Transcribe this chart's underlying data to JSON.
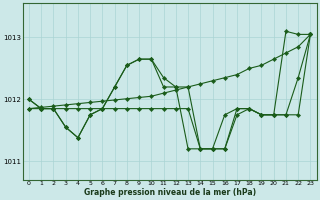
{
  "xlabel": "Graphe pression niveau de la mer (hPa)",
  "background_color": "#cce8e8",
  "grid_color": "#aad4d4",
  "line_color": "#1a5c1a",
  "ylim": [
    1010.7,
    1013.55
  ],
  "yticks": [
    1011,
    1012,
    1013
  ],
  "xlim": [
    -0.5,
    23.5
  ],
  "xticks": [
    0,
    1,
    2,
    3,
    4,
    5,
    6,
    7,
    8,
    9,
    10,
    11,
    12,
    13,
    14,
    15,
    16,
    17,
    18,
    19,
    20,
    21,
    22,
    23
  ],
  "line1_y": [
    1012.0,
    1011.85,
    1011.85,
    1011.55,
    1011.38,
    1011.75,
    1011.85,
    1012.2,
    1012.55,
    1012.65,
    1012.65,
    1012.2,
    1012.2,
    1012.2,
    1011.2,
    1011.2,
    1011.2,
    1011.75,
    1011.85,
    1011.75,
    1011.75,
    1013.1,
    1013.05,
    1013.05
  ],
  "line2_y": [
    1011.85,
    1011.87,
    1011.89,
    1011.91,
    1011.93,
    1011.95,
    1011.97,
    1011.99,
    1012.01,
    1012.03,
    1012.05,
    1012.1,
    1012.15,
    1012.2,
    1012.25,
    1012.3,
    1012.35,
    1012.4,
    1012.5,
    1012.55,
    1012.65,
    1012.75,
    1012.85,
    1013.05
  ],
  "line3_y": [
    1012.0,
    1011.85,
    1011.85,
    1011.55,
    1011.38,
    1011.75,
    1011.85,
    1012.2,
    1012.55,
    1012.65,
    1012.65,
    1012.35,
    1012.2,
    1011.2,
    1011.2,
    1011.2,
    1011.75,
    1011.85,
    1011.85,
    1011.75,
    1011.75,
    1011.75,
    1012.35,
    1013.05
  ],
  "line4_y": [
    1011.85,
    1011.85,
    1011.85,
    1011.85,
    1011.85,
    1011.85,
    1011.85,
    1011.85,
    1011.85,
    1011.85,
    1011.85,
    1011.85,
    1011.85,
    1011.85,
    1011.2,
    1011.2,
    1011.2,
    1011.85,
    1011.85,
    1011.75,
    1011.75,
    1011.75,
    1011.75,
    1013.05
  ],
  "linewidth": 0.8,
  "markersize": 2.2,
  "tick_fontsize": 4.5,
  "label_fontsize": 5.5
}
